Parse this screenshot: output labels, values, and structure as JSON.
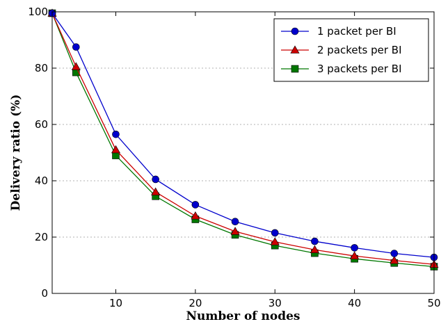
{
  "chart_data": {
    "type": "line",
    "title": "",
    "xlabel": "Number of nodes",
    "ylabel": "Delivery ratio (%)",
    "xlim": [
      2,
      50
    ],
    "ylim": [
      0,
      100
    ],
    "xticks": [
      10,
      20,
      30,
      40,
      50
    ],
    "yticks": [
      0,
      20,
      40,
      60,
      80,
      100
    ],
    "grid": "horizontal-dashed",
    "legend_position": "top-right",
    "x": [
      2,
      5,
      10,
      15,
      20,
      25,
      30,
      35,
      40,
      45,
      50
    ],
    "series": [
      {
        "name": "1 packet per BI",
        "color": "#0000cc",
        "marker": "circle",
        "values": [
          99.5,
          87.5,
          56.5,
          40.5,
          31.5,
          25.5,
          21.5,
          18.5,
          16.2,
          14.2,
          12.8
        ]
      },
      {
        "name": "2 packets per BI",
        "color": "#cc0000",
        "marker": "triangle",
        "values": [
          99.5,
          80.5,
          51.0,
          36.0,
          27.5,
          22.0,
          18.3,
          15.5,
          13.3,
          11.7,
          10.3
        ]
      },
      {
        "name": "3 packets per BI",
        "color": "#007700",
        "marker": "square",
        "values": [
          99.5,
          78.5,
          49.0,
          34.5,
          26.3,
          20.8,
          17.0,
          14.3,
          12.3,
          10.8,
          9.5
        ]
      }
    ]
  }
}
